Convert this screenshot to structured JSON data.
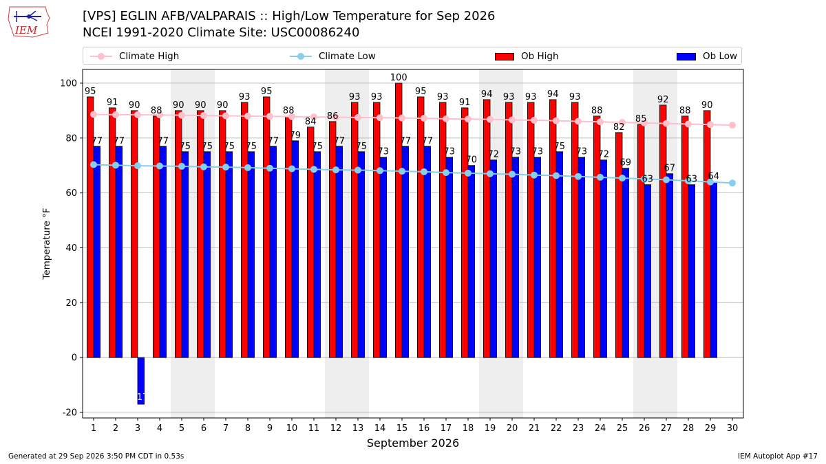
{
  "header": {
    "title_line1": "[VPS] EGLIN AFB/VALPARAIS :: High/Low Temperature for Sep 2026",
    "title_line2": "NCEI 1991-2020 Climate Site: USC00086240",
    "logo_text": "IEM"
  },
  "footer": {
    "left": "Generated at 29 Sep 2026 3:50 PM CDT in 0.53s",
    "right": "IEM Autoplot App #17"
  },
  "colors": {
    "ob_high": "#ff0000",
    "ob_low": "#0000ff",
    "climate_high": "#ffc0cb",
    "climate_low": "#87ceeb",
    "weekend_shade": "#eeeeee",
    "grid": "#b0b0b0"
  },
  "chart_data": {
    "type": "bar",
    "title": "[VPS] EGLIN AFB/VALPARAIS :: High/Low Temperature for Sep 2026",
    "subtitle": "NCEI 1991-2020 Climate Site: USC00086240",
    "xlabel": "September 2026",
    "ylabel": "Temperature °F",
    "ylim": [
      -22,
      105
    ],
    "xlim": [
      0.5,
      30.5
    ],
    "yticks": [
      -20,
      0,
      20,
      40,
      60,
      80,
      100
    ],
    "grid": true,
    "legend_position": "top",
    "categories": [
      1,
      2,
      3,
      4,
      5,
      6,
      7,
      8,
      9,
      10,
      11,
      12,
      13,
      14,
      15,
      16,
      17,
      18,
      19,
      20,
      21,
      22,
      23,
      24,
      25,
      26,
      27,
      28,
      29,
      30
    ],
    "weekend_spans": [
      [
        5,
        6
      ],
      [
        12,
        13
      ],
      [
        19,
        20
      ],
      [
        26,
        27
      ]
    ],
    "series": [
      {
        "name": "Climate High",
        "kind": "line",
        "values": [
          88.6,
          88.5,
          88.5,
          88.4,
          88.3,
          88.2,
          88.1,
          88.0,
          87.9,
          87.8,
          87.7,
          87.6,
          87.5,
          87.4,
          87.3,
          87.2,
          87.0,
          86.9,
          86.8,
          86.6,
          86.5,
          86.3,
          86.1,
          85.9,
          85.7,
          85.5,
          85.3,
          85.1,
          84.9,
          84.7
        ]
      },
      {
        "name": "Climate Low",
        "kind": "line",
        "values": [
          70.3,
          70.1,
          69.9,
          69.8,
          69.7,
          69.5,
          69.4,
          69.2,
          69.0,
          68.8,
          68.6,
          68.4,
          68.3,
          68.1,
          67.9,
          67.7,
          67.4,
          67.2,
          67.0,
          66.8,
          66.5,
          66.3,
          66.0,
          65.7,
          65.4,
          65.1,
          64.8,
          64.4,
          64.0,
          63.6
        ]
      },
      {
        "name": "Ob High",
        "kind": "bar",
        "values": [
          95,
          91,
          90,
          88,
          90,
          90,
          90,
          93,
          95,
          88,
          84,
          86,
          93,
          93,
          100,
          95,
          93,
          91,
          94,
          93,
          93,
          94,
          93,
          88,
          82,
          85,
          92,
          88,
          90,
          null
        ]
      },
      {
        "name": "Ob Low",
        "kind": "bar",
        "values": [
          77,
          77,
          -17,
          77,
          75,
          75,
          75,
          75,
          77,
          79,
          75,
          77,
          75,
          73,
          77,
          77,
          73,
          70,
          72,
          73,
          73,
          75,
          73,
          72,
          69,
          63,
          67,
          63,
          64,
          null
        ]
      }
    ]
  }
}
